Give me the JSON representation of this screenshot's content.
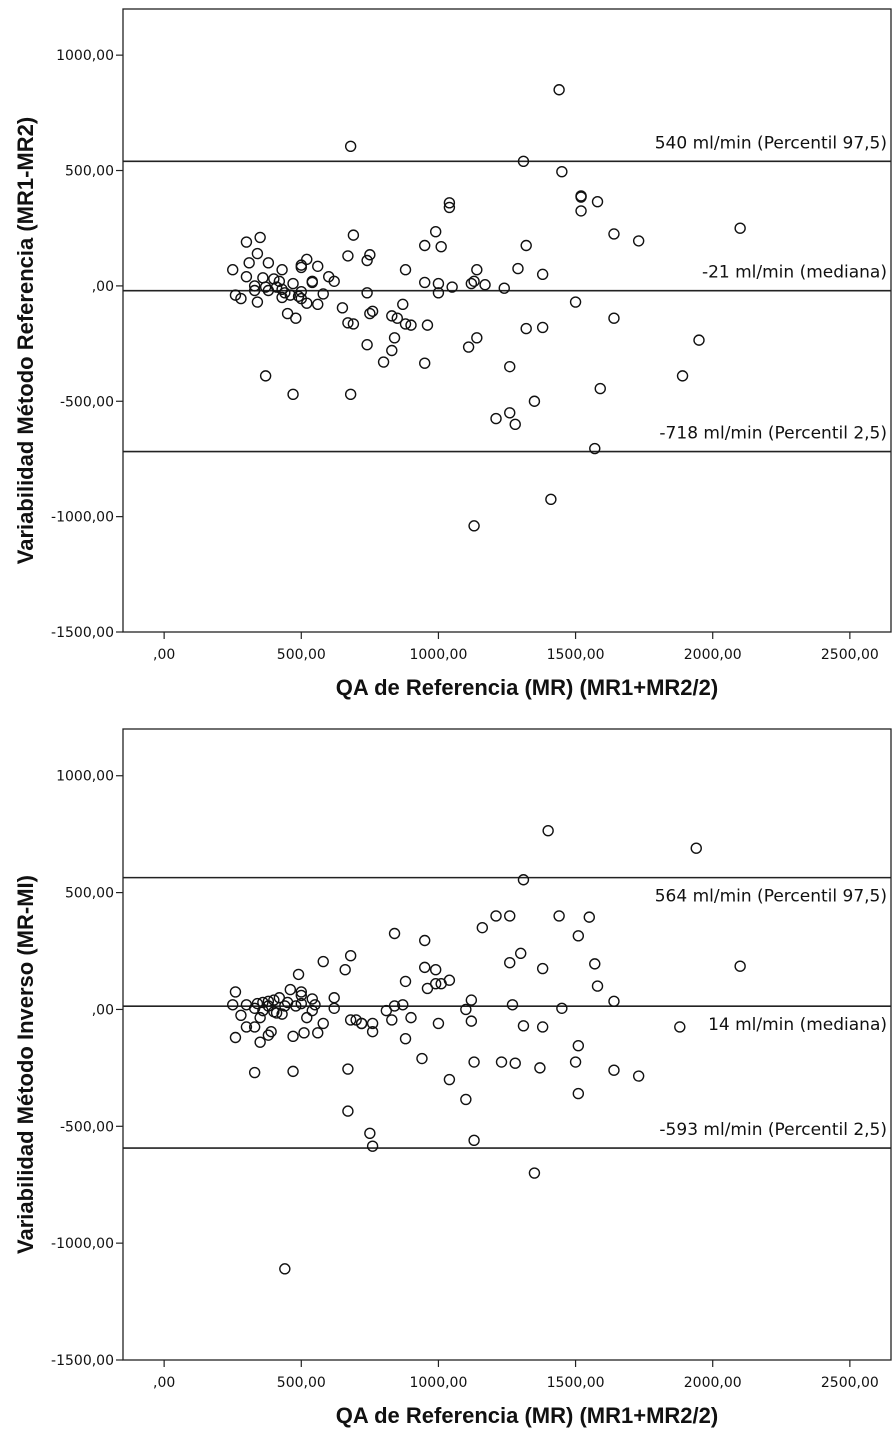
{
  "chart_data": [
    {
      "type": "scatter",
      "title": "",
      "xlabel": "QA de Referencia (MR) (MR1+MR2/2)",
      "ylabel": "Variabilidad Método Referencia (MR1-MR2)",
      "xlim": [
        -150,
        2650
      ],
      "ylim": [
        -1500,
        1200
      ],
      "xticks": [
        0,
        500,
        1000,
        1500,
        2000,
        2500
      ],
      "xtick_labels": [
        ",00",
        "500,00",
        "1000,00",
        "1500,00",
        "2000,00",
        "2500,00"
      ],
      "yticks": [
        1000,
        500,
        0,
        -500,
        -1000,
        -1500
      ],
      "ytick_labels": [
        "1000,00",
        "500,00",
        ",00",
        "-500,00",
        "-1000,00",
        "-1500,00"
      ],
      "grid": false,
      "reference_lines": [
        {
          "y": 540,
          "label": "540 ml/min (Percentil 97,5)"
        },
        {
          "y": -21,
          "label": "-21 ml/min (mediana)"
        },
        {
          "y": -718,
          "label": "-718 ml/min (Percentil 2,5)"
        }
      ],
      "points": [
        [
          1440,
          850
        ],
        [
          680,
          605
        ],
        [
          1310,
          540
        ],
        [
          1450,
          495
        ],
        [
          1520,
          390
        ],
        [
          1520,
          385
        ],
        [
          1580,
          365
        ],
        [
          1040,
          360
        ],
        [
          1040,
          340
        ],
        [
          1520,
          325
        ],
        [
          990,
          235
        ],
        [
          2100,
          250
        ],
        [
          1640,
          225
        ],
        [
          690,
          220
        ],
        [
          1730,
          195
        ],
        [
          350,
          210
        ],
        [
          300,
          190
        ],
        [
          1320,
          175
        ],
        [
          1010,
          170
        ],
        [
          950,
          175
        ],
        [
          340,
          140
        ],
        [
          670,
          130
        ],
        [
          750,
          135
        ],
        [
          740,
          110
        ],
        [
          520,
          115
        ],
        [
          560,
          85
        ],
        [
          500,
          90
        ],
        [
          500,
          80
        ],
        [
          430,
          70
        ],
        [
          250,
          70
        ],
        [
          300,
          40
        ],
        [
          360,
          35
        ],
        [
          400,
          30
        ],
        [
          420,
          20
        ],
        [
          540,
          20
        ],
        [
          540,
          15
        ],
        [
          620,
          20
        ],
        [
          470,
          10
        ],
        [
          330,
          0
        ],
        [
          370,
          -5
        ],
        [
          410,
          -5
        ],
        [
          430,
          -15
        ],
        [
          380,
          -20
        ],
        [
          500,
          -25
        ],
        [
          440,
          -30
        ],
        [
          580,
          -35
        ],
        [
          460,
          -40
        ],
        [
          490,
          -45
        ],
        [
          260,
          -40
        ],
        [
          500,
          -55
        ],
        [
          280,
          -55
        ],
        [
          340,
          -70
        ],
        [
          520,
          -75
        ],
        [
          560,
          -80
        ],
        [
          650,
          -95
        ],
        [
          760,
          -110
        ],
        [
          450,
          -120
        ],
        [
          750,
          -120
        ],
        [
          480,
          -140
        ],
        [
          830,
          -130
        ],
        [
          850,
          -140
        ],
        [
          670,
          -160
        ],
        [
          690,
          -165
        ],
        [
          880,
          -165
        ],
        [
          900,
          -170
        ],
        [
          960,
          -170
        ],
        [
          840,
          -225
        ],
        [
          830,
          -280
        ],
        [
          740,
          -255
        ],
        [
          800,
          -330
        ],
        [
          950,
          -335
        ],
        [
          370,
          -390
        ],
        [
          470,
          -470
        ],
        [
          680,
          -470
        ],
        [
          310,
          100
        ],
        [
          600,
          40
        ],
        [
          1050,
          -5
        ],
        [
          1000,
          -30
        ],
        [
          1120,
          10
        ],
        [
          1130,
          20
        ],
        [
          1140,
          70
        ],
        [
          1170,
          5
        ],
        [
          1240,
          -10
        ],
        [
          1290,
          75
        ],
        [
          1380,
          50
        ],
        [
          1500,
          -70
        ],
        [
          1640,
          -140
        ],
        [
          1950,
          -235
        ],
        [
          1890,
          -390
        ],
        [
          1590,
          -445
        ],
        [
          1110,
          -265
        ],
        [
          1140,
          -225
        ],
        [
          1260,
          -350
        ],
        [
          1380,
          -180
        ],
        [
          1320,
          -185
        ],
        [
          1350,
          -500
        ],
        [
          1260,
          -550
        ],
        [
          1280,
          -600
        ],
        [
          1210,
          -575
        ],
        [
          1570,
          -705
        ],
        [
          1410,
          -925
        ],
        [
          1130,
          -1040
        ],
        [
          740,
          -30
        ],
        [
          870,
          -80
        ],
        [
          380,
          100
        ],
        [
          880,
          70
        ],
        [
          1000,
          10
        ],
        [
          950,
          15
        ],
        [
          430,
          -50
        ],
        [
          330,
          -20
        ]
      ]
    },
    {
      "type": "scatter",
      "title": "",
      "xlabel": "QA de Referencia (MR) (MR1+MR2/2)",
      "ylabel": "Variabilidad Método Inverso (MR-MI)",
      "xlim": [
        -150,
        2650
      ],
      "ylim": [
        -1500,
        1200
      ],
      "xticks": [
        0,
        500,
        1000,
        1500,
        2000,
        2500
      ],
      "xtick_labels": [
        ",00",
        "500,00",
        "1000,00",
        "1500,00",
        "2000,00",
        "2500,00"
      ],
      "yticks": [
        1000,
        500,
        0,
        -500,
        -1000,
        -1500
      ],
      "ytick_labels": [
        "1000,00",
        "500,00",
        ",00",
        "-500,00",
        "-1000,00",
        "-1500,00"
      ],
      "grid": false,
      "reference_lines": [
        {
          "y": 564,
          "label": "564 ml/min (Percentil 97,5)"
        },
        {
          "y": 14,
          "label": "14 ml/min (mediana)"
        },
        {
          "y": -593,
          "label": "-593 ml/min (Percentil 2,5)"
        }
      ],
      "points": [
        [
          1400,
          765
        ],
        [
          1940,
          690
        ],
        [
          1310,
          555
        ],
        [
          1210,
          400
        ],
        [
          1260,
          400
        ],
        [
          1440,
          400
        ],
        [
          1550,
          395
        ],
        [
          840,
          325
        ],
        [
          1510,
          315
        ],
        [
          950,
          295
        ],
        [
          1160,
          350
        ],
        [
          1300,
          240
        ],
        [
          680,
          230
        ],
        [
          580,
          205
        ],
        [
          1260,
          200
        ],
        [
          1570,
          195
        ],
        [
          2100,
          185
        ],
        [
          950,
          180
        ],
        [
          990,
          170
        ],
        [
          1380,
          175
        ],
        [
          1040,
          125
        ],
        [
          1010,
          110
        ],
        [
          880,
          120
        ],
        [
          960,
          90
        ],
        [
          1580,
          100
        ],
        [
          660,
          170
        ],
        [
          620,
          50
        ],
        [
          490,
          150
        ],
        [
          460,
          85
        ],
        [
          500,
          75
        ],
        [
          500,
          60
        ],
        [
          540,
          45
        ],
        [
          420,
          50
        ],
        [
          400,
          40
        ],
        [
          380,
          35
        ],
        [
          360,
          30
        ],
        [
          340,
          25
        ],
        [
          260,
          75
        ],
        [
          250,
          20
        ],
        [
          300,
          20
        ],
        [
          440,
          15
        ],
        [
          480,
          15
        ],
        [
          550,
          20
        ],
        [
          840,
          15
        ],
        [
          870,
          20
        ],
        [
          1120,
          40
        ],
        [
          1270,
          20
        ],
        [
          1640,
          35
        ],
        [
          1450,
          5
        ],
        [
          1100,
          0
        ],
        [
          330,
          5
        ],
        [
          360,
          -5
        ],
        [
          400,
          -10
        ],
        [
          430,
          -20
        ],
        [
          280,
          -25
        ],
        [
          350,
          -35
        ],
        [
          520,
          -35
        ],
        [
          680,
          -45
        ],
        [
          700,
          -45
        ],
        [
          810,
          -5
        ],
        [
          830,
          -45
        ],
        [
          900,
          -35
        ],
        [
          760,
          -60
        ],
        [
          720,
          -60
        ],
        [
          580,
          -60
        ],
        [
          300,
          -75
        ],
        [
          330,
          -75
        ],
        [
          390,
          -95
        ],
        [
          510,
          -100
        ],
        [
          560,
          -100
        ],
        [
          260,
          -120
        ],
        [
          350,
          -140
        ],
        [
          380,
          -110
        ],
        [
          470,
          -115
        ],
        [
          880,
          -125
        ],
        [
          1000,
          -60
        ],
        [
          1120,
          -50
        ],
        [
          1310,
          -70
        ],
        [
          1380,
          -75
        ],
        [
          1880,
          -75
        ],
        [
          760,
          -95
        ],
        [
          940,
          -210
        ],
        [
          1130,
          -225
        ],
        [
          1230,
          -225
        ],
        [
          1280,
          -230
        ],
        [
          1370,
          -250
        ],
        [
          1500,
          -225
        ],
        [
          1510,
          -155
        ],
        [
          1640,
          -260
        ],
        [
          1730,
          -285
        ],
        [
          670,
          -255
        ],
        [
          470,
          -265
        ],
        [
          330,
          -270
        ],
        [
          1040,
          -300
        ],
        [
          1100,
          -385
        ],
        [
          1510,
          -360
        ],
        [
          670,
          -435
        ],
        [
          750,
          -530
        ],
        [
          1130,
          -560
        ],
        [
          760,
          -585
        ],
        [
          1350,
          -700
        ],
        [
          440,
          -1110
        ],
        [
          620,
          5
        ],
        [
          990,
          110
        ],
        [
          540,
          -5
        ],
        [
          450,
          30
        ],
        [
          500,
          25
        ],
        [
          410,
          -15
        ],
        [
          380,
          15
        ],
        [
          720,
          -60
        ]
      ]
    }
  ]
}
